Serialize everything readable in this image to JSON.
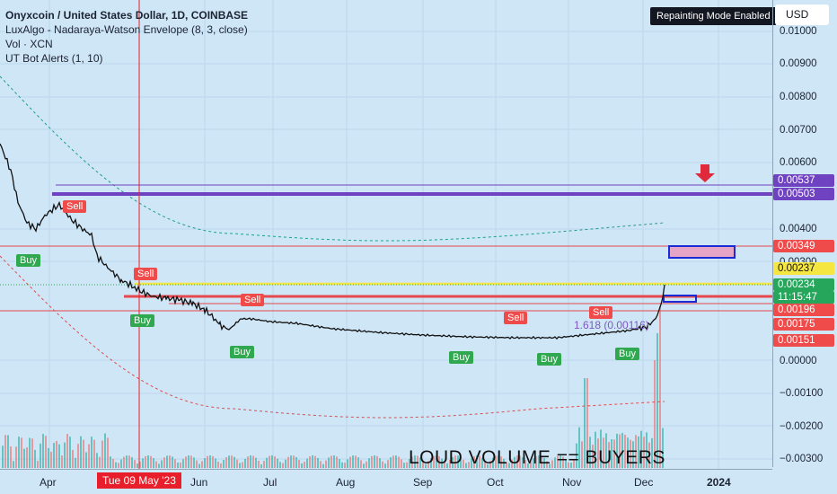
{
  "legend": {
    "title": "Onyxcoin / United States Dollar, 1D, COINBASE",
    "indicator1": "LuxAlgo - Nadaraya-Watson Envelope (8, 3, close)",
    "indicator2": "Vol · XCN",
    "indicator3": "UT Bot Alerts (1, 10)"
  },
  "header": {
    "mode_badge": "Repainting Mode Enabled",
    "currency": "USD"
  },
  "price_axis": {
    "ticks": [
      "0.01000",
      "0.00900",
      "0.00800",
      "0.00700",
      "0.00600",
      "0.00400",
      "0.00300",
      "0.00000",
      "−0.00100",
      "−0.00200",
      "−0.00300"
    ],
    "labels": {
      "l537": "0.00537",
      "l503": "0.00503",
      "l349": "0.00349",
      "l237": "0.00237",
      "l234": "0.00234",
      "countdown": "11:15:47",
      "l196": "0.00196",
      "l175": "0.00175",
      "l151": "0.00151"
    }
  },
  "time_axis": {
    "labels": [
      "Apr",
      "Jun",
      "Jul",
      "Aug",
      "Sep",
      "Oct",
      "Nov",
      "Dec",
      "2024"
    ],
    "cursor": "Tue 09 May '23"
  },
  "signals": {
    "buy": "Buy",
    "sell": "Sell"
  },
  "fib": {
    "f1": "1.618 (0.00116)"
  },
  "annotation": "LOUD VOLUME == BUYERS",
  "colors": {
    "background": "#cfe6f7",
    "price_line": "#111111",
    "buy": "#2fa84f",
    "sell": "#ef4b4b",
    "level_purple": "#6f42c1",
    "level_red": "#e5484d",
    "level_yellow": "#f5e642",
    "volume": "#3fb8b0"
  }
}
